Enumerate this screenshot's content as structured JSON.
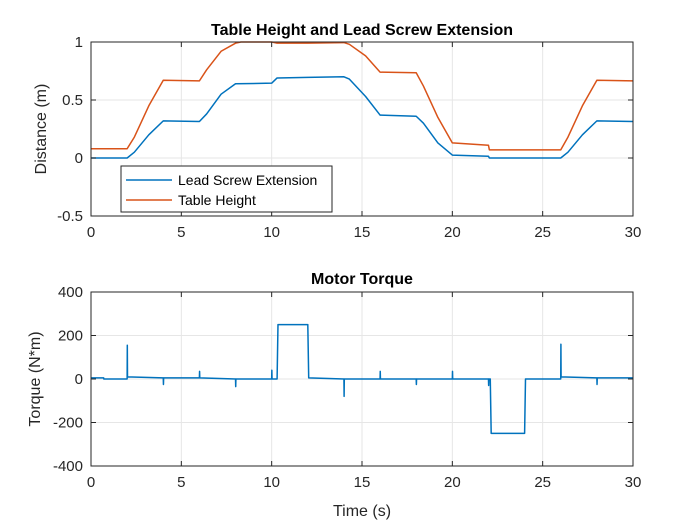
{
  "chart_data": [
    {
      "type": "line",
      "title": "Table Height and Lead Screw Extension",
      "xlabel": "",
      "ylabel": "Distance (m)",
      "xlim": [
        0,
        30
      ],
      "ylim": [
        -0.5,
        1
      ],
      "xticks": [
        0,
        5,
        10,
        15,
        20,
        25,
        30
      ],
      "yticks": [
        -0.5,
        0,
        0.5,
        1
      ],
      "ytick_labels": [
        "-0.5",
        "0",
        "0.5",
        "1"
      ],
      "grid": true,
      "legend_position": "bottom-left",
      "series": [
        {
          "name": "Lead Screw Extension",
          "color": "#0072BD",
          "points": [
            [
              0,
              0.0
            ],
            [
              2,
              0.0
            ],
            [
              2.4,
              0.05
            ],
            [
              3.2,
              0.2
            ],
            [
              4,
              0.32
            ],
            [
              6,
              0.315
            ],
            [
              6.4,
              0.38
            ],
            [
              7.2,
              0.55
            ],
            [
              8,
              0.64
            ],
            [
              10,
              0.645
            ],
            [
              10.3,
              0.69
            ],
            [
              12,
              0.695
            ],
            [
              14,
              0.7
            ],
            [
              14.3,
              0.68
            ],
            [
              15.2,
              0.53
            ],
            [
              16,
              0.37
            ],
            [
              18,
              0.36
            ],
            [
              18.4,
              0.3
            ],
            [
              19.2,
              0.13
            ],
            [
              20,
              0.025
            ],
            [
              22,
              0.015
            ],
            [
              22.05,
              0.0
            ],
            [
              24,
              0.0
            ],
            [
              26,
              0.0
            ],
            [
              26.4,
              0.05
            ],
            [
              27.2,
              0.2
            ],
            [
              28,
              0.32
            ],
            [
              30,
              0.315
            ]
          ]
        },
        {
          "name": "Table Height",
          "color": "#D95319",
          "points": [
            [
              0,
              0.08
            ],
            [
              2,
              0.08
            ],
            [
              2.4,
              0.18
            ],
            [
              3.2,
              0.45
            ],
            [
              4,
              0.67
            ],
            [
              6,
              0.665
            ],
            [
              6.4,
              0.76
            ],
            [
              7.2,
              0.92
            ],
            [
              8,
              0.99
            ],
            [
              8.3,
              1.0
            ],
            [
              10,
              1.0
            ],
            [
              10.3,
              0.99
            ],
            [
              12,
              0.99
            ],
            [
              14,
              0.995
            ],
            [
              14.3,
              0.98
            ],
            [
              15.2,
              0.88
            ],
            [
              16,
              0.74
            ],
            [
              18,
              0.735
            ],
            [
              18.4,
              0.62
            ],
            [
              19.2,
              0.35
            ],
            [
              20,
              0.13
            ],
            [
              22,
              0.11
            ],
            [
              22.05,
              0.07
            ],
            [
              24,
              0.07
            ],
            [
              26,
              0.07
            ],
            [
              26.4,
              0.18
            ],
            [
              27.2,
              0.45
            ],
            [
              28,
              0.67
            ],
            [
              30,
              0.665
            ]
          ]
        }
      ]
    },
    {
      "type": "line",
      "title": "Motor Torque",
      "xlabel": "Time (s)",
      "ylabel": "Torque (N*m)",
      "xlim": [
        0,
        30
      ],
      "ylim": [
        -400,
        400
      ],
      "xticks": [
        0,
        5,
        10,
        15,
        20,
        25,
        30
      ],
      "yticks": [
        -400,
        -200,
        0,
        200,
        400
      ],
      "ytick_labels": [
        "-400",
        "-200",
        "0",
        "200",
        "400"
      ],
      "grid": true,
      "series": [
        {
          "name": "",
          "color": "#0072BD",
          "points": [
            [
              0,
              5
            ],
            [
              0.7,
              5
            ],
            [
              0.71,
              0
            ],
            [
              2,
              0
            ],
            [
              2.01,
              155
            ],
            [
              2.02,
              10
            ],
            [
              4,
              5
            ],
            [
              4.01,
              -25
            ],
            [
              4.02,
              5
            ],
            [
              6,
              5
            ],
            [
              6.01,
              35
            ],
            [
              6.02,
              5
            ],
            [
              8,
              0
            ],
            [
              8.01,
              -35
            ],
            [
              8.02,
              0
            ],
            [
              10,
              0
            ],
            [
              10.01,
              40
            ],
            [
              10.02,
              0
            ],
            [
              10.3,
              0
            ],
            [
              10.35,
              250
            ],
            [
              12,
              250
            ],
            [
              12.05,
              5
            ],
            [
              14,
              0
            ],
            [
              14.01,
              -80
            ],
            [
              14.02,
              0
            ],
            [
              16,
              0
            ],
            [
              16.01,
              35
            ],
            [
              16.02,
              0
            ],
            [
              18,
              0
            ],
            [
              18.01,
              -25
            ],
            [
              18.02,
              0
            ],
            [
              20,
              0
            ],
            [
              20.01,
              35
            ],
            [
              20.02,
              0
            ],
            [
              22,
              0
            ],
            [
              22.01,
              -30
            ],
            [
              22.02,
              0
            ],
            [
              22.1,
              0
            ],
            [
              22.15,
              -250
            ],
            [
              24,
              -250
            ],
            [
              24.05,
              0
            ],
            [
              26,
              0
            ],
            [
              26.01,
              160
            ],
            [
              26.02,
              10
            ],
            [
              28,
              5
            ],
            [
              28.01,
              -25
            ],
            [
              28.02,
              5
            ],
            [
              30,
              5
            ]
          ]
        }
      ]
    }
  ]
}
